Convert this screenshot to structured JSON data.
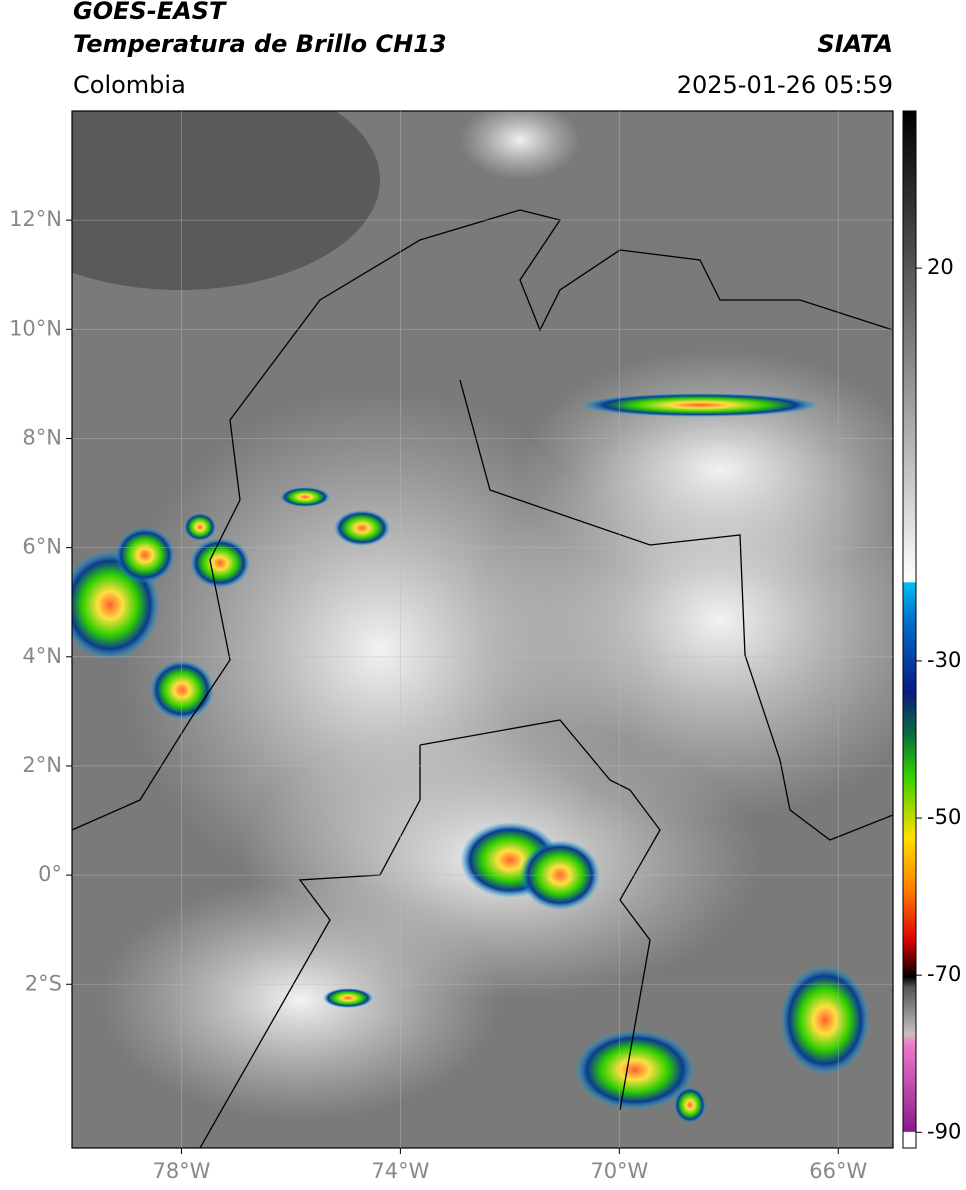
{
  "header": {
    "title": "GOES-EAST",
    "subtitle": "Temperatura de Brillo CH13",
    "source": "SIATA",
    "region": "Colombia",
    "datetime": "2025-01-26 05:59"
  },
  "map": {
    "xlim": [
      -80,
      -65
    ],
    "ylim": [
      -5,
      14
    ],
    "xticks": [
      {
        "value": -78,
        "label": "78°W"
      },
      {
        "value": -74,
        "label": "74°W"
      },
      {
        "value": -70,
        "label": "70°W"
      },
      {
        "value": -66,
        "label": "66°W"
      }
    ],
    "yticks": [
      {
        "value": 12,
        "label": "12°N"
      },
      {
        "value": 10,
        "label": "10°N"
      },
      {
        "value": 8,
        "label": "8°N"
      },
      {
        "value": 6,
        "label": "6°N"
      },
      {
        "value": 4,
        "label": "4°N"
      },
      {
        "value": 2,
        "label": "2°N"
      },
      {
        "value": 0,
        "label": "0°"
      },
      {
        "value": -2,
        "label": "2°S"
      }
    ]
  },
  "colorbar": {
    "lim": [
      -92,
      40
    ],
    "ticks": [
      20,
      -30,
      -50,
      -70,
      -90
    ]
  }
}
